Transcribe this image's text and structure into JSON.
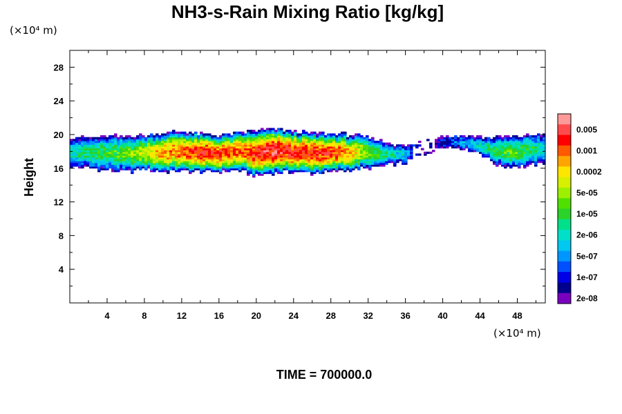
{
  "chart_data": {
    "type": "heatmap",
    "title": "NH3-s-Rain Mixing Ratio [kg/kg]",
    "ylabel": "Height",
    "xlabel": "",
    "x_unit": "(×10⁴ m)",
    "y_unit": "(×10⁴ m)",
    "xlim": [
      0,
      51
    ],
    "ylim": [
      0,
      30
    ],
    "x_ticks": [
      "4",
      "8",
      "12",
      "16",
      "20",
      "24",
      "28",
      "32",
      "36",
      "40",
      "44",
      "48"
    ],
    "y_ticks": [
      "4",
      "8",
      "12",
      "16",
      "20",
      "24",
      "28"
    ],
    "colorbar": {
      "labels": [
        "0.005",
        "0.001",
        "0.0002",
        "5e-05",
        "1e-05",
        "2e-06",
        "5e-07",
        "1e-07",
        "2e-08"
      ],
      "colors": [
        "#ff9a9a",
        "#ff4b4b",
        "#ff0000",
        "#ff5a00",
        "#ffa500",
        "#ffe600",
        "#d7f000",
        "#9cf000",
        "#50e000",
        "#2ad22a",
        "#00e08a",
        "#00e0c8",
        "#00c8f0",
        "#0096ff",
        "#0050ff",
        "#0000e6",
        "#00008c",
        "#7a00c0"
      ]
    },
    "field": {
      "description_band_y": [
        15,
        21
      ],
      "profile": [
        {
          "x": 0,
          "bottom": 16.2,
          "top": 19.8,
          "max_level": 11
        },
        {
          "x": 2,
          "bottom": 16.0,
          "top": 19.6,
          "max_level": 10
        },
        {
          "x": 4,
          "bottom": 15.8,
          "top": 19.8,
          "max_level": 9
        },
        {
          "x": 6,
          "bottom": 15.6,
          "top": 19.8,
          "max_level": 8
        },
        {
          "x": 8,
          "bottom": 15.9,
          "top": 19.9,
          "max_level": 6
        },
        {
          "x": 10,
          "bottom": 15.6,
          "top": 20.2,
          "max_level": 4
        },
        {
          "x": 12,
          "bottom": 15.7,
          "top": 20.4,
          "max_level": 3
        },
        {
          "x": 14,
          "bottom": 15.6,
          "top": 20.1,
          "max_level": 2
        },
        {
          "x": 16,
          "bottom": 15.6,
          "top": 19.9,
          "max_level": 2
        },
        {
          "x": 18,
          "bottom": 15.8,
          "top": 20.2,
          "max_level": 3
        },
        {
          "x": 20,
          "bottom": 15.1,
          "top": 20.5,
          "max_level": 2
        },
        {
          "x": 22,
          "bottom": 15.5,
          "top": 20.7,
          "max_level": 1
        },
        {
          "x": 24,
          "bottom": 15.6,
          "top": 20.4,
          "max_level": 2
        },
        {
          "x": 26,
          "bottom": 15.4,
          "top": 20.2,
          "max_level": 2
        },
        {
          "x": 28,
          "bottom": 15.6,
          "top": 20.1,
          "max_level": 2
        },
        {
          "x": 30,
          "bottom": 15.8,
          "top": 20.0,
          "max_level": 4
        },
        {
          "x": 32,
          "bottom": 16.0,
          "top": 19.7,
          "max_level": 8
        },
        {
          "x": 34,
          "bottom": 16.3,
          "top": 19.1,
          "max_level": 10
        },
        {
          "x": 36,
          "bottom": 16.7,
          "top": 18.6,
          "max_level": 12
        },
        {
          "x": 38,
          "bottom": 17.6,
          "top": 19.4,
          "max_level": 16
        },
        {
          "x": 40,
          "bottom": 18.6,
          "top": 19.8,
          "max_level": 15
        },
        {
          "x": 42,
          "bottom": 18.4,
          "top": 19.9,
          "max_level": 13
        },
        {
          "x": 44,
          "bottom": 17.8,
          "top": 19.7,
          "max_level": 11
        },
        {
          "x": 46,
          "bottom": 16.3,
          "top": 19.7,
          "max_level": 9
        },
        {
          "x": 48,
          "bottom": 16.2,
          "top": 19.8,
          "max_level": 8
        },
        {
          "x": 50,
          "bottom": 16.4,
          "top": 20.1,
          "max_level": 10
        },
        {
          "x": 51,
          "bottom": 16.6,
          "top": 20.0,
          "max_level": 12
        }
      ]
    }
  },
  "footer": {
    "time_label": "TIME = 700000.0"
  }
}
